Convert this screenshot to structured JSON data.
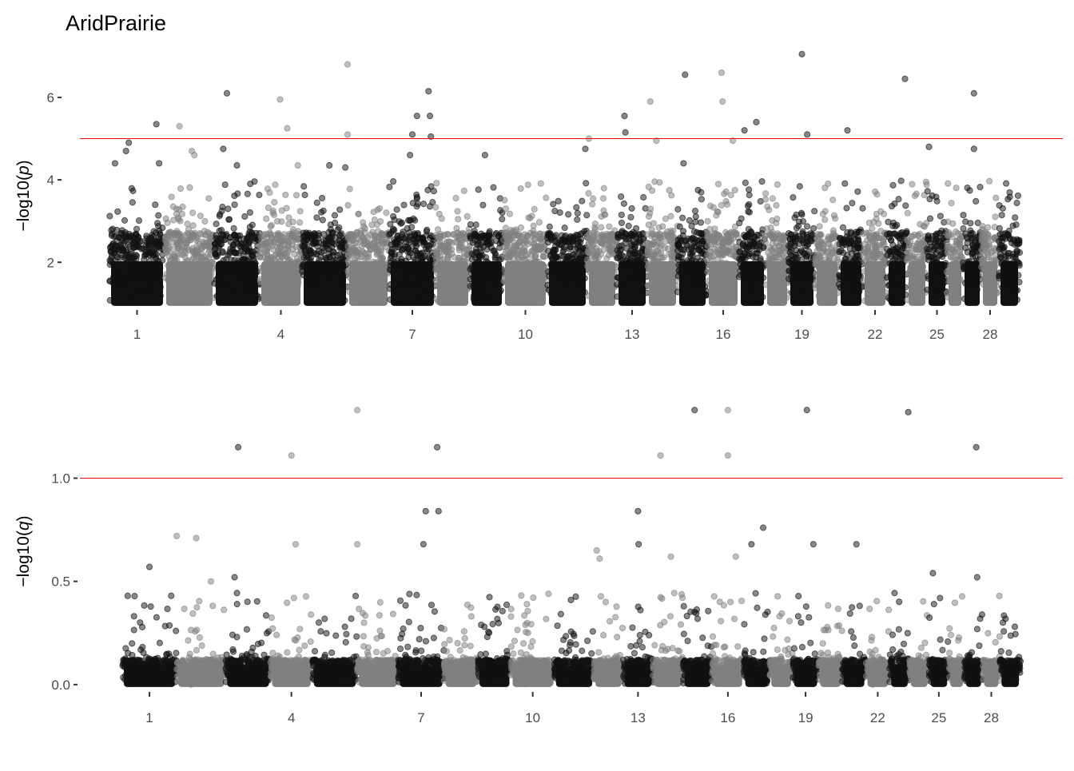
{
  "chart_data": {
    "type": "scatter",
    "title": "AridPrairie",
    "colors": {
      "odd": "#111111",
      "even": "#808080",
      "threshold": "#ff0000"
    },
    "chromosomes": [
      {
        "chr": 1,
        "length": 69
      },
      {
        "chr": 2,
        "length": 62
      },
      {
        "chr": 3,
        "length": 57
      },
      {
        "chr": 4,
        "length": 53
      },
      {
        "chr": 5,
        "length": 57
      },
      {
        "chr": 6,
        "length": 52
      },
      {
        "chr": 7,
        "length": 58
      },
      {
        "chr": 8,
        "length": 43
      },
      {
        "chr": 9,
        "length": 42
      },
      {
        "chr": 10,
        "length": 55
      },
      {
        "chr": 11,
        "length": 50
      },
      {
        "chr": 12,
        "length": 37
      },
      {
        "chr": 13,
        "length": 38
      },
      {
        "chr": 14,
        "length": 38
      },
      {
        "chr": 15,
        "length": 37
      },
      {
        "chr": 16,
        "length": 40
      },
      {
        "chr": 17,
        "length": 33
      },
      {
        "chr": 18,
        "length": 29
      },
      {
        "chr": 19,
        "length": 33
      },
      {
        "chr": 20,
        "length": 30
      },
      {
        "chr": 21,
        "length": 30
      },
      {
        "chr": 22,
        "length": 30
      },
      {
        "chr": 23,
        "length": 25
      },
      {
        "chr": 24,
        "length": 25
      },
      {
        "chr": 25,
        "length": 25
      },
      {
        "chr": 26,
        "length": 20
      },
      {
        "chr": 27,
        "length": 23
      },
      {
        "chr": 28,
        "length": 22
      },
      {
        "chr": 29,
        "length": 26
      }
    ],
    "panels": [
      {
        "ylabel_prefix": "−log10(",
        "ylabel_var": "p",
        "ylabel_suffix": ")",
        "ylim": [
          0.9,
          7.2
        ],
        "yticks": [
          {
            "v": 2,
            "label": "2"
          },
          {
            "v": 4,
            "label": "4"
          },
          {
            "v": 6,
            "label": "6"
          }
        ],
        "xticks": [
          {
            "chr": 1,
            "label": "1"
          },
          {
            "chr": 4,
            "label": "4"
          },
          {
            "chr": 7,
            "label": "7"
          },
          {
            "chr": 10,
            "label": "10"
          },
          {
            "chr": 13,
            "label": "13"
          },
          {
            "chr": 16,
            "label": "16"
          },
          {
            "chr": 19,
            "label": "19"
          },
          {
            "chr": 22,
            "label": "22"
          },
          {
            "chr": 25,
            "label": "25"
          },
          {
            "chr": 28,
            "label": "28"
          }
        ],
        "threshold": 5,
        "base": 1.0,
        "dense_top": 2.7,
        "scatter_top": 4.0,
        "peaks": [
          [
            1,
            0.35,
            4.9
          ],
          [
            1,
            0.3,
            4.7
          ],
          [
            1,
            0.1,
            4.4
          ],
          [
            1,
            0.85,
            5.35
          ],
          [
            1,
            0.9,
            4.4
          ],
          [
            2,
            0.3,
            5.3
          ],
          [
            2,
            0.55,
            4.7
          ],
          [
            2,
            0.6,
            4.6
          ],
          [
            3,
            0.28,
            6.1
          ],
          [
            3,
            0.2,
            4.75
          ],
          [
            3,
            0.5,
            4.35
          ],
          [
            4,
            0.48,
            5.95
          ],
          [
            4,
            0.65,
            5.25
          ],
          [
            4,
            0.9,
            4.35
          ],
          [
            5,
            0.6,
            4.35
          ],
          [
            5,
            0.95,
            4.3
          ],
          [
            6,
            0.0,
            6.8
          ],
          [
            6,
            0.0,
            5.1
          ],
          [
            7,
            0.5,
            5.1
          ],
          [
            7,
            0.6,
            5.55
          ],
          [
            7,
            0.85,
            6.15
          ],
          [
            7,
            0.88,
            5.55
          ],
          [
            7,
            0.9,
            5.05
          ],
          [
            7,
            0.45,
            4.6
          ],
          [
            9,
            0.45,
            4.6
          ],
          [
            11,
            0.95,
            4.75
          ],
          [
            12,
            0.05,
            5.0
          ],
          [
            13,
            0.25,
            5.55
          ],
          [
            13,
            0.28,
            5.15
          ],
          [
            14,
            0.1,
            5.9
          ],
          [
            14,
            0.3,
            4.95
          ],
          [
            15,
            0.25,
            6.55
          ],
          [
            15,
            0.2,
            4.4
          ],
          [
            16,
            0.45,
            6.6
          ],
          [
            16,
            0.48,
            5.9
          ],
          [
            16,
            0.8,
            4.95
          ],
          [
            17,
            0.2,
            5.2
          ],
          [
            17,
            0.65,
            5.4
          ],
          [
            19,
            0.5,
            7.05
          ],
          [
            19,
            0.7,
            5.1
          ],
          [
            21,
            0.35,
            5.2
          ],
          [
            23,
            0.9,
            6.45
          ],
          [
            25,
            0.1,
            4.8
          ],
          [
            27,
            0.6,
            6.1
          ],
          [
            27,
            0.6,
            4.75
          ]
        ]
      },
      {
        "ylabel_prefix": "−log10(",
        "ylabel_var": "q",
        "ylabel_suffix": ")",
        "ylim": [
          -0.02,
          1.42
        ],
        "yticks": [
          {
            "v": 0,
            "label": "0.0"
          },
          {
            "v": 0.5,
            "label": "0.5"
          },
          {
            "v": 1,
            "label": "1.0"
          }
        ],
        "xticks": [
          {
            "chr": 1,
            "label": "1"
          },
          {
            "chr": 4,
            "label": "4"
          },
          {
            "chr": 7,
            "label": "7"
          },
          {
            "chr": 10,
            "label": "10"
          },
          {
            "chr": 13,
            "label": "13"
          },
          {
            "chr": 16,
            "label": "16"
          },
          {
            "chr": 19,
            "label": "19"
          },
          {
            "chr": 22,
            "label": "22"
          },
          {
            "chr": 25,
            "label": "25"
          },
          {
            "chr": 28,
            "label": "28"
          }
        ],
        "threshold": 1.0,
        "base": 0.0,
        "dense_top": 0.12,
        "scatter_top": 0.45,
        "peaks": [
          [
            1,
            0.1,
            0.43
          ],
          [
            1,
            0.5,
            0.57
          ],
          [
            1,
            0.9,
            0.43
          ],
          [
            2,
            0.0,
            0.72
          ],
          [
            2,
            0.4,
            0.71
          ],
          [
            2,
            0.7,
            0.5
          ],
          [
            3,
            0.28,
            1.15
          ],
          [
            3,
            0.2,
            0.52
          ],
          [
            4,
            0.5,
            1.11
          ],
          [
            4,
            0.6,
            0.68
          ],
          [
            6,
            0.0,
            1.33
          ],
          [
            6,
            0.0,
            0.68
          ],
          [
            7,
            0.55,
            0.68
          ],
          [
            7,
            0.6,
            0.84
          ],
          [
            7,
            0.85,
            1.15
          ],
          [
            7,
            0.88,
            0.84
          ],
          [
            12,
            0.1,
            0.65
          ],
          [
            12,
            0.2,
            0.61
          ],
          [
            13,
            0.5,
            0.84
          ],
          [
            13,
            0.52,
            0.68
          ],
          [
            14,
            0.25,
            1.11
          ],
          [
            14,
            0.6,
            0.62
          ],
          [
            15,
            0.4,
            1.33
          ],
          [
            16,
            0.5,
            1.33
          ],
          [
            16,
            0.5,
            1.11
          ],
          [
            16,
            0.75,
            0.62
          ],
          [
            17,
            0.3,
            0.68
          ],
          [
            17,
            0.75,
            0.76
          ],
          [
            19,
            0.55,
            1.33
          ],
          [
            19,
            0.8,
            0.68
          ],
          [
            21,
            0.6,
            0.68
          ],
          [
            23,
            0.95,
            1.32
          ],
          [
            25,
            0.2,
            0.54
          ],
          [
            27,
            0.65,
            1.15
          ],
          [
            27,
            0.7,
            0.52
          ]
        ]
      }
    ]
  }
}
